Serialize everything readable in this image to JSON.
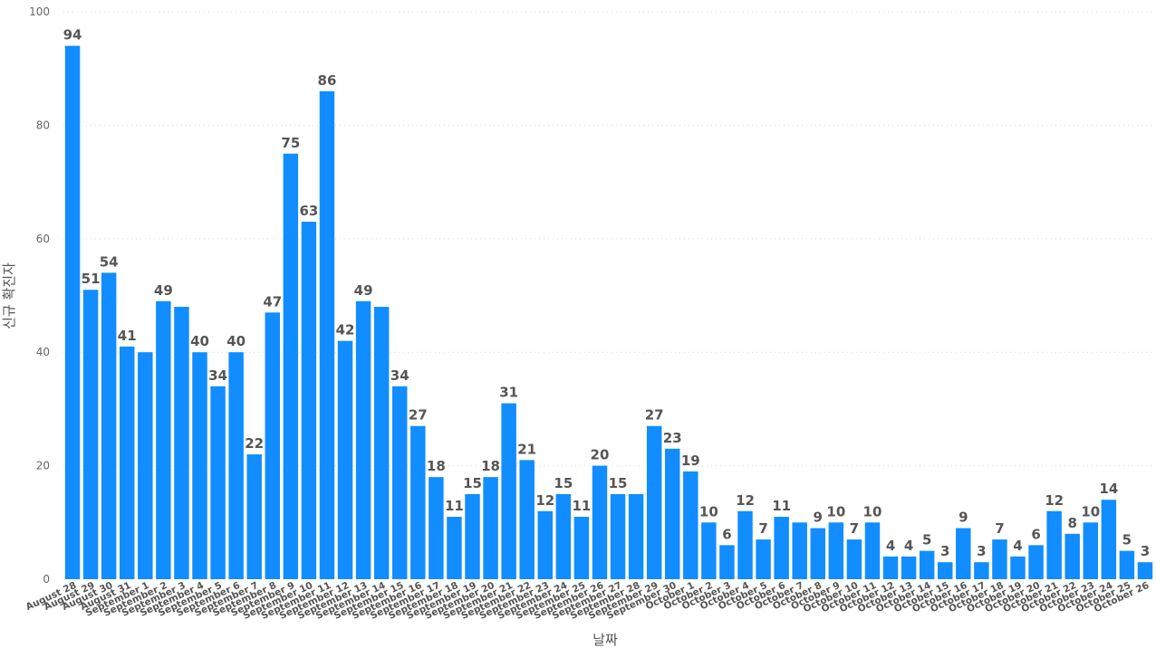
{
  "chart_data": {
    "type": "bar",
    "xlabel": "날짜",
    "ylabel": "신규 확진자",
    "ylim": [
      0,
      100
    ],
    "yticks": [
      0,
      20,
      40,
      60,
      80,
      100
    ],
    "grid": true,
    "bar_color": "#118dff",
    "categories": [
      "August 28",
      "August 29",
      "August 30",
      "August 31",
      "September 1",
      "September 2",
      "September 3",
      "September 4",
      "September 5",
      "September 6",
      "September 7",
      "September 8",
      "September 9",
      "September 10",
      "September 11",
      "September 12",
      "September 13",
      "September 14",
      "September 15",
      "September 16",
      "September 17",
      "September 18",
      "September 19",
      "September 20",
      "September 21",
      "September 22",
      "September 23",
      "September 24",
      "September 25",
      "September 26",
      "September 27",
      "September 28",
      "September 29",
      "September 30",
      "October 1",
      "October 2",
      "October 3",
      "October 4",
      "October 5",
      "October 6",
      "October 7",
      "October 8",
      "October 9",
      "October 10",
      "October 11",
      "October 12",
      "October 13",
      "October 14",
      "October 15",
      "October 16",
      "October 17",
      "October 18",
      "October 19",
      "October 20",
      "October 21",
      "October 22",
      "October 23",
      "October 24",
      "October 25",
      "October 26"
    ],
    "values": [
      94,
      51,
      54,
      41,
      40,
      49,
      48,
      40,
      34,
      40,
      22,
      47,
      75,
      63,
      86,
      42,
      49,
      48,
      34,
      27,
      18,
      11,
      15,
      18,
      31,
      21,
      12,
      15,
      11,
      20,
      15,
      15,
      27,
      23,
      19,
      10,
      6,
      12,
      7,
      11,
      10,
      9,
      10,
      7,
      10,
      4,
      4,
      5,
      3,
      9,
      3,
      7,
      4,
      6,
      12,
      8,
      10,
      14,
      5,
      3
    ],
    "data_labels": [
      "94",
      "51",
      "54",
      "41",
      "",
      "49",
      "",
      "40",
      "34",
      "40",
      "22",
      "47",
      "75",
      "63",
      "86",
      "42",
      "49",
      "",
      "34",
      "27",
      "18",
      "11",
      "15",
      "18",
      "31",
      "21",
      "12",
      "15",
      "11",
      "20",
      "15",
      "",
      "27",
      "23",
      "19",
      "10",
      "6",
      "12",
      "7",
      "11",
      "",
      "9",
      "10",
      "7",
      "10",
      "4",
      "4",
      "5",
      "3",
      "9",
      "3",
      "7",
      "4",
      "6",
      "12",
      "8",
      "10",
      "14",
      "5",
      "3"
    ]
  }
}
